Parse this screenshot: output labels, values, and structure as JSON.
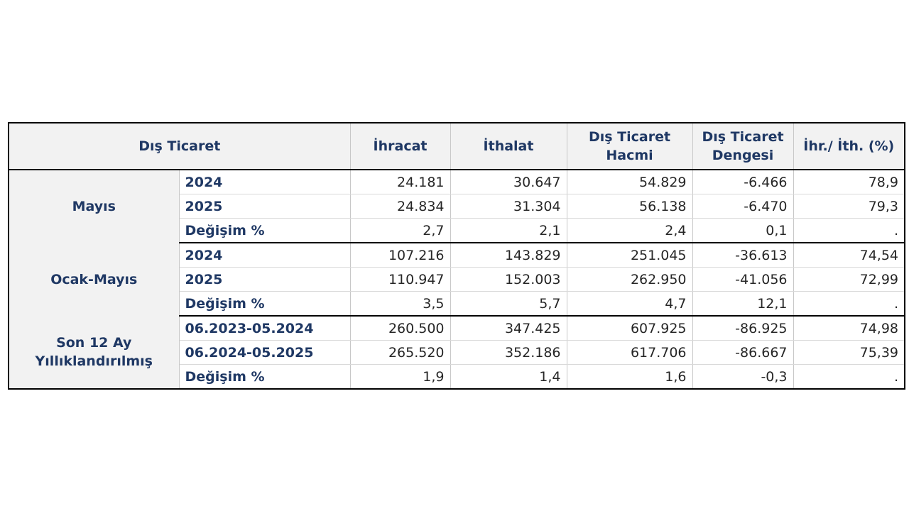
{
  "header": {
    "title": "Dış Ticaret",
    "columns": [
      [
        "İhracat"
      ],
      [
        "İthalat"
      ],
      [
        "Dış Ticaret",
        "Hacmi"
      ],
      [
        "Dış Ticaret",
        "Dengesi"
      ],
      [
        "İhr./ İth. (%)"
      ]
    ]
  },
  "groups": [
    {
      "name": [
        "Mayıs"
      ],
      "rows": [
        {
          "label": "2024",
          "values": [
            "24.181",
            "30.647",
            "54.829",
            "-6.466",
            "78,9"
          ]
        },
        {
          "label": "2025",
          "values": [
            "24.834",
            "31.304",
            "56.138",
            "-6.470",
            "79,3"
          ]
        },
        {
          "label": "Değişim %",
          "values": [
            "2,7",
            "2,1",
            "2,4",
            "0,1",
            "."
          ]
        }
      ]
    },
    {
      "name": [
        "Ocak-Mayıs"
      ],
      "rows": [
        {
          "label": "2024",
          "values": [
            "107.216",
            "143.829",
            "251.045",
            "-36.613",
            "74,54"
          ]
        },
        {
          "label": "2025",
          "values": [
            "110.947",
            "152.003",
            "262.950",
            "-41.056",
            "72,99"
          ]
        },
        {
          "label": "Değişim %",
          "values": [
            "3,5",
            "5,7",
            "4,7",
            "12,1",
            "."
          ]
        }
      ]
    },
    {
      "name": [
        "Son 12 Ay",
        "Yıllıklandırılmış"
      ],
      "rows": [
        {
          "label": "06.2023-05.2024",
          "values": [
            "260.500",
            "347.425",
            "607.925",
            "-86.925",
            "74,98"
          ]
        },
        {
          "label": "06.2024-05.2025",
          "values": [
            "265.520",
            "352.186",
            "617.706",
            "-86.667",
            "75,39"
          ]
        },
        {
          "label": "Değişim %",
          "values": [
            "1,9",
            "1,4",
            "1,6",
            "-0,3",
            "."
          ]
        }
      ]
    }
  ]
}
